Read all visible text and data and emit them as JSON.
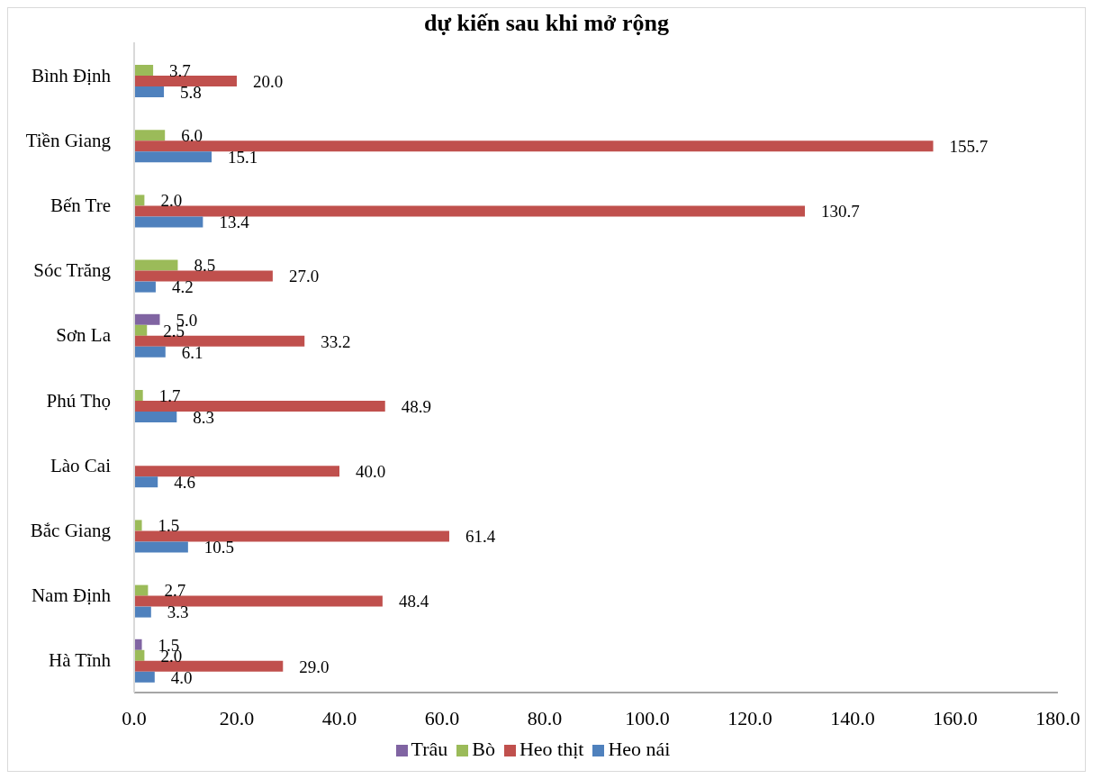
{
  "chart_data": {
    "type": "bar",
    "orientation": "horizontal",
    "title": "dự kiến sau khi mở rộng",
    "categories": [
      "Bình Định",
      "Tiền Giang",
      "Bến Tre",
      "Sóc Trăng",
      "Sơn La",
      "Phú Thọ",
      "Lào Cai",
      "Bắc Giang",
      "Nam Định",
      "Hà Tĩnh"
    ],
    "series": [
      {
        "name": "Trâu",
        "color": "#8064a2",
        "values": [
          null,
          null,
          null,
          null,
          5.0,
          null,
          null,
          null,
          null,
          1.5
        ],
        "value_labels": [
          null,
          null,
          null,
          null,
          "5.0",
          null,
          null,
          null,
          null,
          "1.5"
        ]
      },
      {
        "name": "Bò",
        "color": "#9bbb59",
        "values": [
          3.7,
          6.0,
          2.0,
          8.5,
          2.5,
          1.7,
          null,
          1.5,
          2.7,
          2.0
        ],
        "value_labels": [
          "3.7",
          "6.0",
          "2.0",
          "8.5",
          "2.5",
          "1.7",
          null,
          "1.5",
          "2.7",
          "2.0"
        ]
      },
      {
        "name": "Heo thịt",
        "color": "#c0504d",
        "values": [
          20.0,
          155.7,
          130.7,
          27.0,
          33.2,
          48.9,
          40.0,
          61.4,
          48.4,
          29.0
        ],
        "value_labels": [
          "20.0",
          "155.7",
          "130.7",
          "27.0",
          "33.2",
          "48.9",
          "40.0",
          "61.4",
          "48.4",
          "29.0"
        ]
      },
      {
        "name": "Heo nái",
        "color": "#4f81bd",
        "values": [
          5.8,
          15.1,
          13.4,
          4.2,
          6.1,
          8.3,
          4.6,
          10.5,
          3.3,
          4.0
        ],
        "value_labels": [
          "5.8",
          "15.1",
          "13.4",
          "4.2",
          "6.1",
          "8.3",
          "4.6",
          "10.5",
          "3.3",
          "4.0"
        ]
      }
    ],
    "xlim": [
      0,
      180
    ],
    "xticks": [
      {
        "value": 0,
        "label": "0.0"
      },
      {
        "value": 20,
        "label": "20.0"
      },
      {
        "value": 40,
        "label": "40.0"
      },
      {
        "value": 60,
        "label": "60.0"
      },
      {
        "value": 80,
        "label": "80.0"
      },
      {
        "value": 100,
        "label": "100.0"
      },
      {
        "value": 120,
        "label": "120.0"
      },
      {
        "value": 140,
        "label": "140.0"
      },
      {
        "value": 160,
        "label": "160.0"
      },
      {
        "value": 180,
        "label": "180.0"
      }
    ],
    "grid": false,
    "legend": "bottom"
  }
}
